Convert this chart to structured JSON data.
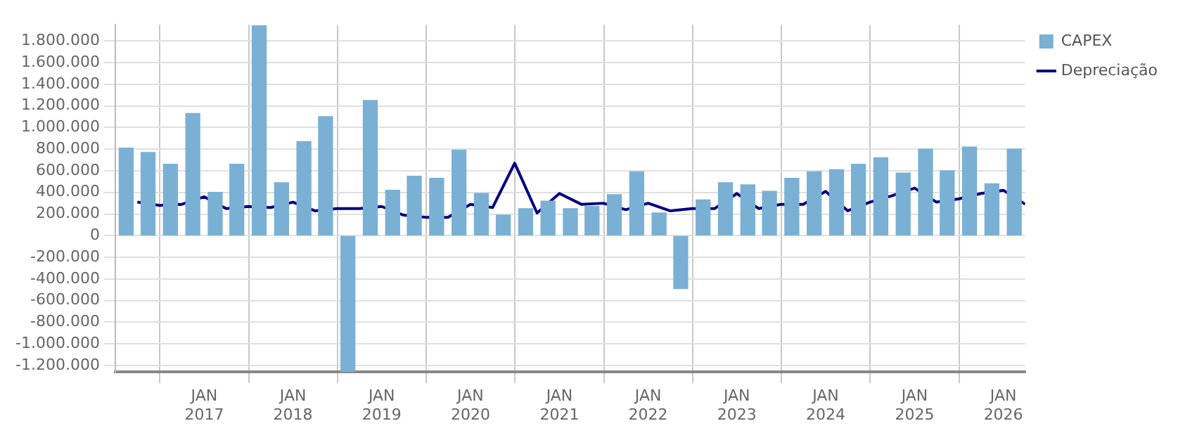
{
  "chart_data": {
    "type": "bar",
    "legend": "top right",
    "grid": true,
    "ylim": [
      -1260000,
      1950000
    ],
    "yticks": [
      {
        "value": -1200000,
        "label": "-1.200.000"
      },
      {
        "value": -1000000,
        "label": "-1.000.000"
      },
      {
        "value": -800000,
        "label": "-800.000"
      },
      {
        "value": -600000,
        "label": "-600.000"
      },
      {
        "value": -400000,
        "label": "-400.000"
      },
      {
        "value": -200000,
        "label": "-200.000"
      },
      0,
      {
        "value": 200000,
        "label": "200.000"
      },
      {
        "value": 400000,
        "label": "400.000"
      },
      {
        "value": 600000,
        "label": "600.000"
      },
      {
        "value": 800000,
        "label": "800.000"
      },
      {
        "value": 1000000,
        "label": "1.000.000"
      },
      {
        "value": 1200000,
        "label": "1.200.000"
      },
      {
        "value": 1400000,
        "label": "1.400.000"
      },
      {
        "value": 1600000,
        "label": "1.600.000"
      },
      {
        "value": 1800000,
        "label": "1.800.000"
      }
    ],
    "xlim": [
      "2016-01-01",
      "2026-04-01"
    ],
    "xticks": [
      {
        "value": "2017-01-01",
        "label": "JAN 2017"
      },
      {
        "value": "2018-01-01",
        "label": "JAN 2018"
      },
      {
        "value": "2019-01-01",
        "label": "JAN 2019"
      },
      {
        "value": "2020-01-01",
        "label": "JAN 2020"
      },
      {
        "value": "2021-01-01",
        "label": "JAN 2021"
      },
      {
        "value": "2022-01-01",
        "label": "JAN 2022"
      },
      {
        "value": "2023-01-01",
        "label": "JAN 2023"
      },
      {
        "value": "2024-01-01",
        "label": "JAN 2024"
      },
      {
        "value": "2025-01-01",
        "label": "JAN 2025"
      },
      {
        "value": "2026-01-01",
        "label": "JAN 2026"
      }
    ],
    "series": [
      {
        "name": "CAPEX",
        "color": "#7ab0d4",
        "x": [
          "2016-02-15",
          "2016-05-15",
          "2016-08-15",
          "2016-11-15",
          "2017-02-15",
          "2017-05-15",
          "2017-08-15",
          "2017-11-15",
          "2018-02-15",
          "2018-05-15",
          "2018-08-15",
          "2018-11-15",
          "2019-02-15",
          "2019-05-15",
          "2019-08-15",
          "2019-11-15",
          "2020-02-15",
          "2020-05-15",
          "2020-08-15",
          "2020-11-15",
          "2021-02-15",
          "2021-05-15",
          "2021-08-15",
          "2021-11-15",
          "2022-02-15",
          "2022-05-15",
          "2022-08-15",
          "2022-11-15",
          "2023-02-15",
          "2023-05-15",
          "2023-08-15",
          "2023-11-15",
          "2024-02-15",
          "2024-05-15",
          "2024-08-15",
          "2024-11-15",
          "2025-02-15",
          "2025-05-15",
          "2025-08-15",
          "2025-11-15",
          "2026-02-15"
        ],
        "values": [
          810000,
          770000,
          660000,
          1130000,
          400000,
          660000,
          1940000,
          490000,
          870000,
          1100000,
          -1260000,
          1250000,
          420000,
          550000,
          530000,
          790000,
          390000,
          190000,
          250000,
          320000,
          250000,
          270000,
          380000,
          590000,
          210000,
          -490000,
          330000,
          490000,
          470000,
          410000,
          530000,
          590000,
          610000,
          660000,
          720000,
          580000,
          800000,
          600000,
          820000,
          480000,
          800000
        ]
      },
      {
        "name": "Depreciação",
        "type": "line",
        "color": "#000080",
        "x": [
          "2016-04-01",
          "2016-07-01",
          "2016-10-01",
          "2017-01-01",
          "2017-04-01",
          "2017-07-01",
          "2017-10-01",
          "2018-01-01",
          "2018-04-01",
          "2018-07-01",
          "2018-10-01",
          "2019-01-01",
          "2019-04-01",
          "2019-07-01",
          "2019-10-01",
          "2020-01-01",
          "2020-04-01",
          "2020-07-01",
          "2020-10-01",
          "2021-01-01",
          "2021-04-01",
          "2021-07-01",
          "2021-10-01",
          "2022-01-01",
          "2022-04-01",
          "2022-07-01",
          "2022-10-01",
          "2023-01-01",
          "2023-04-01",
          "2023-07-01",
          "2023-10-01",
          "2024-01-01",
          "2024-04-01",
          "2024-07-01",
          "2024-10-01",
          "2025-01-01",
          "2025-04-01",
          "2025-07-01",
          "2025-10-01",
          "2026-01-01",
          "2026-04-01"
        ],
        "values": [
          310000,
          280000,
          290000,
          360000,
          250000,
          270000,
          260000,
          310000,
          230000,
          250000,
          250000,
          270000,
          190000,
          170000,
          170000,
          290000,
          260000,
          670000,
          210000,
          390000,
          290000,
          300000,
          240000,
          300000,
          230000,
          250000,
          250000,
          390000,
          250000,
          290000,
          290000,
          410000,
          230000,
          310000,
          370000,
          440000,
          310000,
          340000,
          390000,
          420000,
          290000
        ]
      }
    ]
  }
}
